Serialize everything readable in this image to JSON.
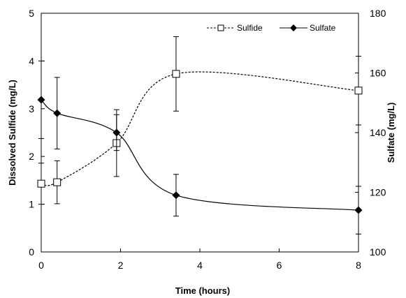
{
  "chart_data": {
    "type": "line",
    "xlabel": "Time (hours)",
    "ylabel": "Dissolved Sulfide (mg/L)",
    "y2label": "Sulfate (mg/L)",
    "xlim": [
      0,
      8
    ],
    "ylim": [
      0,
      5
    ],
    "y2lim": [
      100,
      180
    ],
    "x_ticks": [
      "0",
      "2",
      "4",
      "6",
      "8"
    ],
    "y_ticks": [
      "0",
      "1",
      "2",
      "3",
      "4",
      "5"
    ],
    "y2_ticks": [
      "100",
      "120",
      "140",
      "160",
      "180"
    ],
    "legend_position": "top-right",
    "grid": false,
    "series": [
      {
        "name": "Sulfide",
        "axis": "left",
        "marker": "open-square",
        "line_style": "dashed",
        "color": "#000000",
        "x": [
          0,
          0.4,
          1.9,
          3.4,
          8
        ],
        "y": [
          1.43,
          1.46,
          2.28,
          3.73,
          3.38
        ],
        "err": [
          0.43,
          0.45,
          0.7,
          0.78,
          0.72
        ]
      },
      {
        "name": "Sulfate",
        "axis": "right",
        "marker": "filled-diamond",
        "line_style": "solid",
        "color": "#000000",
        "x": [
          0,
          0.4,
          1.9,
          3.4,
          8
        ],
        "y": [
          151,
          146.5,
          140,
          119,
          114
        ],
        "err": [
          13,
          12,
          6,
          7,
          8
        ]
      }
    ]
  }
}
